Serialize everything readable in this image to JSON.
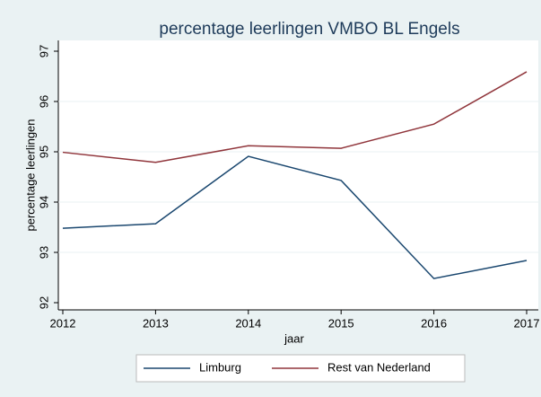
{
  "chart_data": {
    "type": "line",
    "title": "percentage leerlingen VMBO BL Engels",
    "x_label": "jaar",
    "y_label": "percentage leerlingen",
    "x": [
      2012,
      2013,
      2014,
      2015,
      2016,
      2017
    ],
    "series": [
      {
        "name": "Limburg",
        "color": "#1a476f",
        "values": [
          93.48,
          93.57,
          94.91,
          94.43,
          92.48,
          92.84
        ]
      },
      {
        "name": "Rest van Nederland",
        "color": "#90353b",
        "values": [
          94.99,
          94.79,
          95.12,
          95.07,
          95.55,
          96.59
        ]
      }
    ],
    "xlim": [
      2012,
      2017
    ],
    "xticks": [
      2012,
      2013,
      2014,
      2015,
      2016,
      2017
    ],
    "ylim": [
      92,
      97
    ],
    "yticks": [
      92,
      93,
      94,
      95,
      96,
      97
    ],
    "grid": true,
    "legend": "bottom"
  }
}
